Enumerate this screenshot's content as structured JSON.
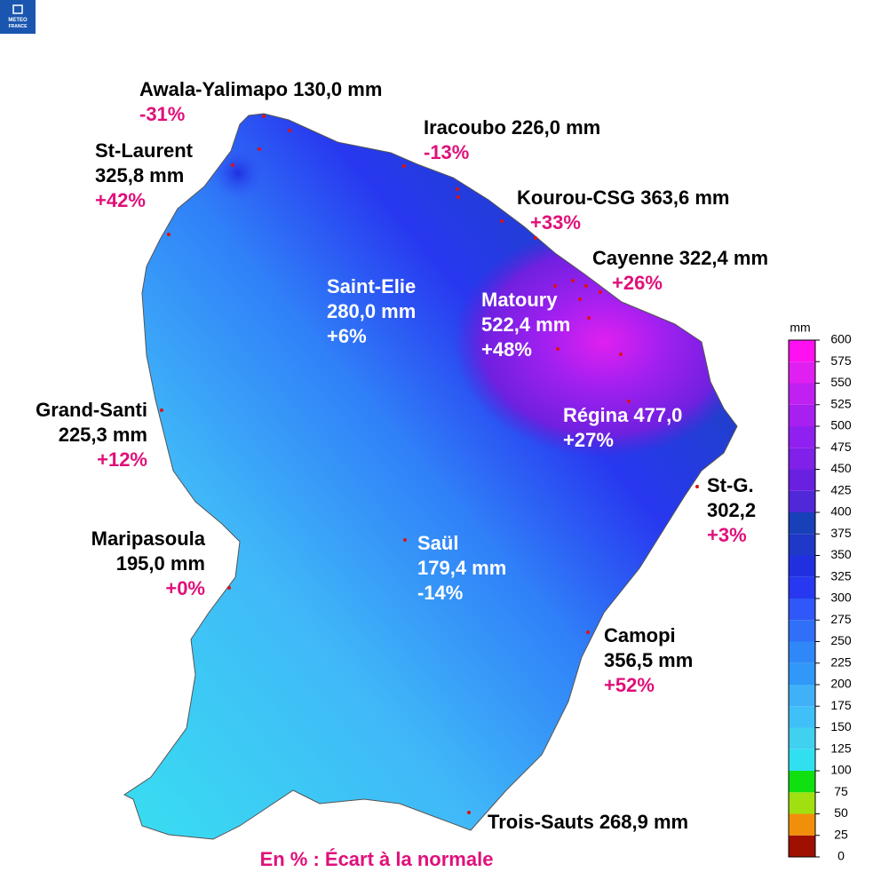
{
  "logo": {
    "lines": [
      "METEO",
      "FRANCE"
    ]
  },
  "stations": [
    {
      "name": "Awala-Yalimapo",
      "amount": "130,0 mm",
      "anomaly": "-31%"
    },
    {
      "name": "Iracoubo",
      "amount": "226,0 mm",
      "anomaly": "-13%"
    },
    {
      "name": "St-Laurent",
      "amount": "325,8 mm",
      "anomaly": "+42%"
    },
    {
      "name": "Kourou-CSG",
      "amount": "363,6 mm",
      "anomaly": "+33%"
    },
    {
      "name": "Cayenne",
      "amount": "322,4 mm",
      "anomaly": "+26%"
    },
    {
      "name": "Saint-Elie",
      "amount": "280,0 mm",
      "anomaly": "+6%"
    },
    {
      "name": "Matoury",
      "amount": "522,4 mm",
      "anomaly": "+48%"
    },
    {
      "name": "Régina",
      "amount": "477,0",
      "anomaly": "+27%"
    },
    {
      "name": "Grand-Santi",
      "amount": "225,3 mm",
      "anomaly": "+12%"
    },
    {
      "name": "Maripasoula",
      "amount": "195,0 mm",
      "anomaly": "+0%"
    },
    {
      "name": "Saül",
      "amount": "179,4 mm",
      "anomaly": "-14%"
    },
    {
      "name": "St-G.",
      "amount": "302,2",
      "anomaly": "+3%"
    },
    {
      "name": "Camopi",
      "amount": "356,5 mm",
      "anomaly": "+52%"
    },
    {
      "name": "Trois-Sauts",
      "amount": "268,9 mm"
    }
  ],
  "colorbar": {
    "unit": "mm",
    "ticks": [
      0,
      25,
      50,
      75,
      100,
      125,
      150,
      175,
      200,
      225,
      250,
      275,
      300,
      325,
      350,
      375,
      400,
      425,
      450,
      475,
      500,
      525,
      550,
      575,
      600
    ],
    "colors": [
      "#a01000",
      "#f0900a",
      "#a0e010",
      "#10e010",
      "#30e0f0",
      "#40d0f0",
      "#40c0f8",
      "#40b0f8",
      "#3098f8",
      "#3088f8",
      "#3070f8",
      "#3058f8",
      "#2838f0",
      "#2030e0",
      "#2038c8",
      "#1840b8",
      "#5028d8",
      "#6a20e0",
      "#8020e8",
      "#9020f0",
      "#a820f0",
      "#c020f0",
      "#e020f0",
      "#ff10f0"
    ]
  },
  "footer": "En % : Écart à la normale"
}
